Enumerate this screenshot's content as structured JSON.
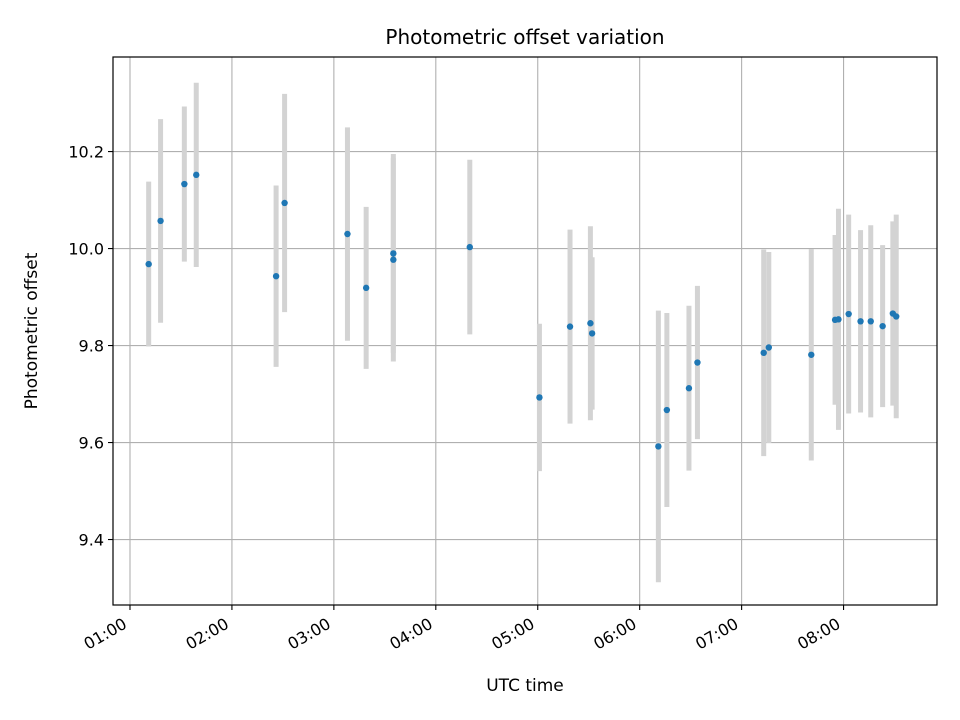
{
  "chart_data": {
    "type": "scatter",
    "title": "Photometric offset variation",
    "xlabel": "UTC time",
    "ylabel": "Photometric offset",
    "x_axis": "time (HH:MM, UTC)",
    "xlim": [
      "00:50",
      "08:55"
    ],
    "ylim": [
      9.265,
      10.395
    ],
    "xticks": [
      "01:00",
      "02:00",
      "03:00",
      "04:00",
      "05:00",
      "06:00",
      "07:00",
      "08:00"
    ],
    "yticks": [
      9.4,
      9.6,
      9.8,
      10.0,
      10.2
    ],
    "grid": true,
    "colors": {
      "point": "#1f77b4",
      "errorbar": "#d3d3d3",
      "grid": "#b0b0b0"
    },
    "series": [
      {
        "points": [
          {
            "x": "01:11",
            "y": 9.968,
            "err": 0.17
          },
          {
            "x": "01:18",
            "y": 10.057,
            "err": 0.21
          },
          {
            "x": "01:32",
            "y": 10.133,
            "err": 0.16
          },
          {
            "x": "01:39",
            "y": 10.152,
            "err": 0.19
          },
          {
            "x": "02:26",
            "y": 9.943,
            "err": 0.187
          },
          {
            "x": "02:31",
            "y": 10.094,
            "err": 0.225
          },
          {
            "x": "03:08",
            "y": 10.03,
            "err": 0.22
          },
          {
            "x": "03:19",
            "y": 9.919,
            "err": 0.167
          },
          {
            "x": "03:35",
            "y": 9.977,
            "err": 0.21
          },
          {
            "x": "03:35",
            "y": 9.99,
            "err": 0.205
          },
          {
            "x": "04:20",
            "y": 10.003,
            "err": 0.18
          },
          {
            "x": "05:01",
            "y": 9.693,
            "err": 0.152
          },
          {
            "x": "05:19",
            "y": 9.839,
            "err": 0.2
          },
          {
            "x": "05:31",
            "y": 9.846,
            "err": 0.2
          },
          {
            "x": "05:32",
            "y": 9.825,
            "err": 0.157
          },
          {
            "x": "06:11",
            "y": 9.592,
            "err": 0.28
          },
          {
            "x": "06:16",
            "y": 9.667,
            "err": 0.2
          },
          {
            "x": "06:29",
            "y": 9.712,
            "err": 0.17
          },
          {
            "x": "06:34",
            "y": 9.765,
            "err": 0.158
          },
          {
            "x": "07:13",
            "y": 9.785,
            "err": 0.213
          },
          {
            "x": "07:16",
            "y": 9.796,
            "err": 0.197
          },
          {
            "x": "07:41",
            "y": 9.781,
            "err": 0.218
          },
          {
            "x": "07:55",
            "y": 9.853,
            "err": 0.175
          },
          {
            "x": "07:57",
            "y": 9.854,
            "err": 0.228
          },
          {
            "x": "08:03",
            "y": 9.865,
            "err": 0.205
          },
          {
            "x": "08:10",
            "y": 9.85,
            "err": 0.188
          },
          {
            "x": "08:16",
            "y": 9.85,
            "err": 0.198
          },
          {
            "x": "08:23",
            "y": 9.84,
            "err": 0.167
          },
          {
            "x": "08:29",
            "y": 9.866,
            "err": 0.19
          },
          {
            "x": "08:31",
            "y": 9.86,
            "err": 0.21
          }
        ]
      }
    ]
  }
}
